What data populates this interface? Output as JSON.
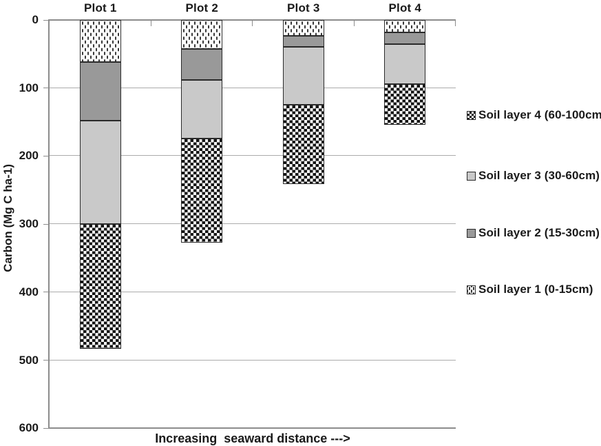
{
  "chart_data": {
    "type": "bar",
    "stacked": true,
    "y_axis_inverted": true,
    "title": "",
    "categories": [
      "Plot 1",
      "Plot 2",
      "Plot 3",
      "Plot 4"
    ],
    "series": [
      {
        "name": "Soil layer 1 (0-15cm)",
        "pattern": "dots",
        "fill": "white-with-dark-speckle",
        "values": [
          62,
          43,
          24,
          19
        ]
      },
      {
        "name": "Soil layer 2 (15-30cm)",
        "pattern": "solid",
        "color": "#999999",
        "values": [
          86,
          46,
          16,
          17
        ]
      },
      {
        "name": "Soil layer 3 (30-60cm)",
        "pattern": "solid",
        "color": "#c9c9c9",
        "values": [
          152,
          86,
          85,
          59
        ]
      },
      {
        "name": "Soil layer 4 (60-100cm)",
        "pattern": "checker",
        "fill": "black-white-checkerboard",
        "values": [
          184,
          153,
          117,
          59
        ]
      }
    ],
    "stack_totals": [
      484,
      328,
      242,
      154
    ],
    "ylabel": "Carbon (Mg C ha-1)",
    "xlabel": "Increasing  seaward distance --->",
    "ylim": [
      0,
      600
    ],
    "yticks": [
      0,
      100,
      200,
      300,
      400,
      500,
      600
    ],
    "grid": true,
    "legend_position": "right",
    "legend_order": [
      "Soil layer 4 (60-100cm)",
      "Soil layer 3 (30-60cm)",
      "Soil layer 2 (15-30cm)",
      "Soil layer 1 (0-15cm)"
    ]
  },
  "colors": {
    "background": "#ffffff",
    "text": "#1a1a1a",
    "gridline": "#ababab",
    "axis": "#8c8c8c",
    "bar_border": "#2a2a2a",
    "layer2_fill": "#999999",
    "layer3_fill": "#c9c9c9"
  }
}
